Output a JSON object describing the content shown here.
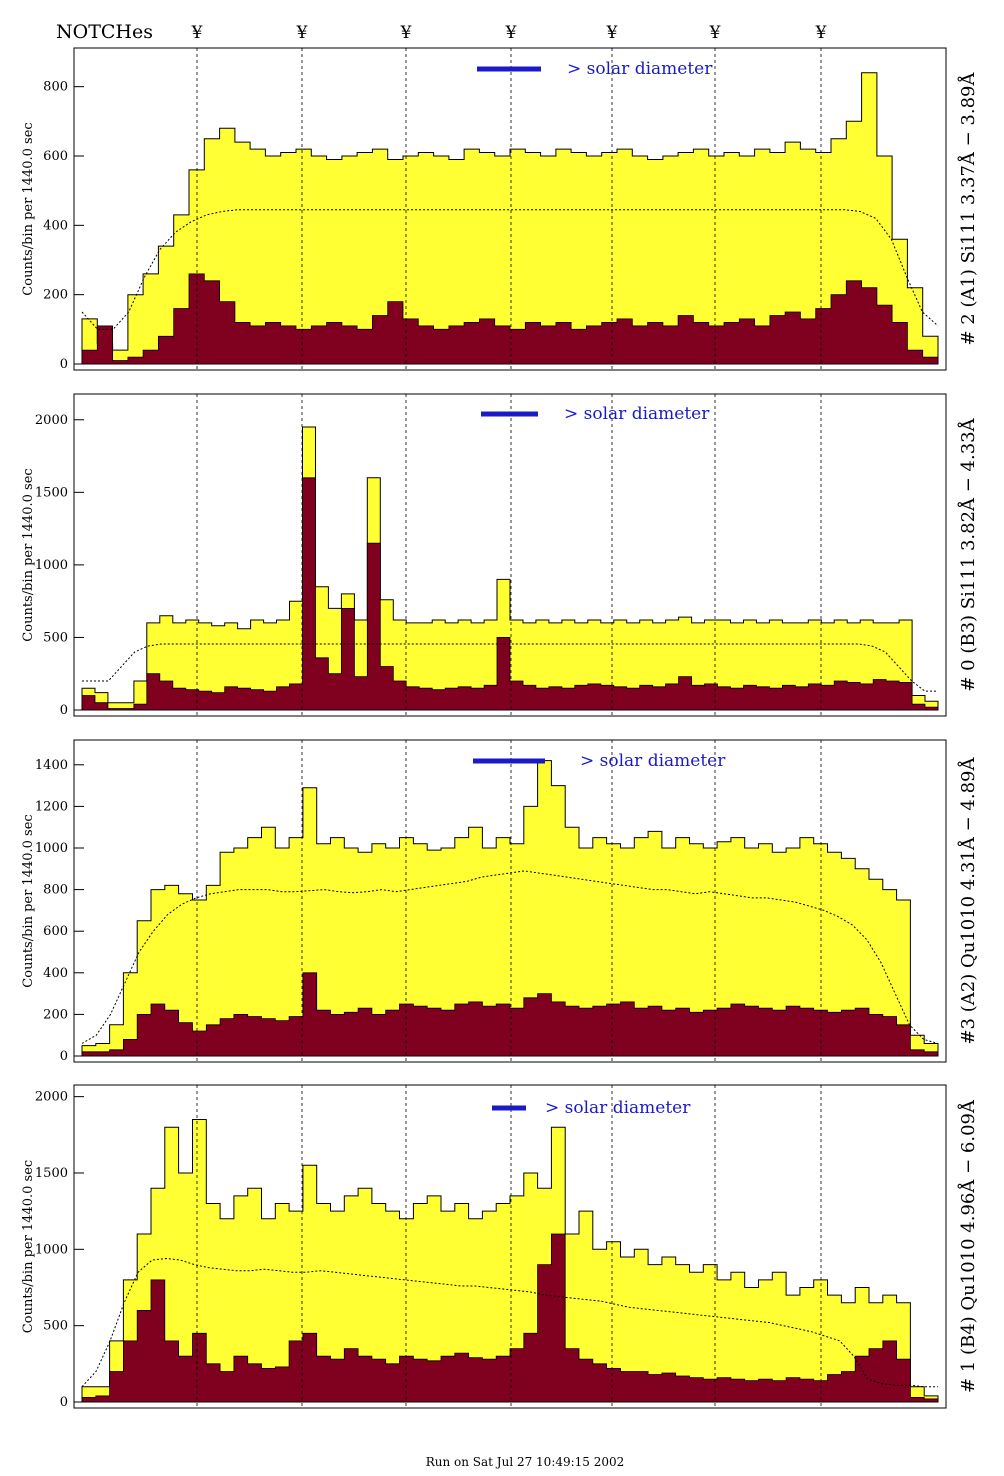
{
  "header": {
    "notches_label": "NOTCHes",
    "notch_symbol": "¥"
  },
  "footer": {
    "run_text": "Run on Sat Jul 27 10:49:15 2002"
  },
  "colors": {
    "upper_fill": "#ffff33",
    "lower_fill": "#800020",
    "legend_blue": "#1a1ac8",
    "axis": "#000000"
  },
  "chart_data": [
    {
      "type": "area",
      "ylabel": "Counts/bin per   1440.0 sec",
      "right_label": "# 2 (A1) Si111  3.37Å − 3.89Å",
      "legend": "> solar diameter",
      "ylim": [
        0,
        900
      ],
      "yticks": [
        0,
        200,
        400,
        600,
        800
      ],
      "series": [
        {
          "values": [
            130,
            60,
            40,
            200,
            260,
            340,
            430,
            560,
            650,
            680,
            640,
            620,
            600,
            610,
            620,
            600,
            590,
            600,
            610,
            620,
            590,
            600,
            610,
            600,
            590,
            620,
            610,
            600,
            620,
            610,
            600,
            620,
            610,
            600,
            610,
            620,
            600,
            590,
            600,
            610,
            620,
            600,
            610,
            600,
            620,
            610,
            640,
            620,
            610,
            650,
            700,
            840,
            600,
            360,
            220,
            80
          ]
        },
        {
          "values": [
            40,
            110,
            10,
            20,
            40,
            80,
            160,
            260,
            240,
            180,
            120,
            110,
            120,
            110,
            100,
            110,
            120,
            110,
            100,
            140,
            180,
            130,
            110,
            100,
            110,
            120,
            130,
            110,
            100,
            120,
            110,
            120,
            100,
            110,
            120,
            130,
            110,
            120,
            110,
            140,
            120,
            110,
            120,
            130,
            110,
            140,
            150,
            130,
            160,
            200,
            240,
            220,
            170,
            120,
            40,
            20
          ]
        },
        {
          "values": [
            150,
            100,
            100,
            150,
            250,
            330,
            380,
            410,
            430,
            440,
            445,
            445,
            445,
            445,
            445,
            445,
            445,
            445,
            445,
            445,
            445,
            445,
            445,
            445,
            445,
            445,
            445,
            445,
            445,
            445,
            445,
            445,
            445,
            445,
            445,
            445,
            445,
            445,
            445,
            445,
            445,
            445,
            445,
            445,
            445,
            445,
            445,
            445,
            445,
            445,
            440,
            420,
            360,
            250,
            150,
            110
          ]
        }
      ]
    },
    {
      "type": "area",
      "ylabel": "Counts/bin per   1440.0 sec",
      "right_label": "# 0 (B3) Si111  3.82Å − 4.33Å",
      "legend": "> solar diameter",
      "ylim": [
        0,
        2150
      ],
      "yticks": [
        0,
        500,
        1000,
        1500,
        2000
      ],
      "series": [
        {
          "values": [
            150,
            120,
            50,
            50,
            200,
            600,
            650,
            600,
            620,
            600,
            580,
            600,
            560,
            620,
            600,
            620,
            750,
            1950,
            850,
            700,
            800,
            620,
            1600,
            760,
            620,
            600,
            600,
            620,
            600,
            620,
            600,
            620,
            900,
            620,
            600,
            620,
            600,
            620,
            600,
            620,
            600,
            620,
            600,
            620,
            600,
            620,
            640,
            600,
            620,
            620,
            600,
            620,
            600,
            620,
            600,
            600,
            620,
            600,
            620,
            600,
            620,
            600,
            600,
            620,
            100,
            60
          ]
        },
        {
          "values": [
            100,
            50,
            10,
            10,
            40,
            250,
            200,
            150,
            140,
            130,
            120,
            160,
            150,
            140,
            130,
            160,
            180,
            1600,
            360,
            250,
            700,
            230,
            1150,
            300,
            200,
            160,
            150,
            140,
            150,
            160,
            150,
            170,
            500,
            200,
            170,
            150,
            160,
            150,
            170,
            180,
            170,
            160,
            150,
            170,
            160,
            180,
            230,
            170,
            180,
            160,
            150,
            170,
            160,
            150,
            170,
            160,
            180,
            170,
            200,
            190,
            180,
            210,
            200,
            190,
            40,
            20
          ]
        },
        {
          "values": [
            200,
            200,
            200,
            300,
            400,
            440,
            455,
            455,
            455,
            455,
            455,
            455,
            455,
            455,
            455,
            455,
            455,
            455,
            455,
            455,
            455,
            455,
            455,
            455,
            455,
            455,
            455,
            455,
            455,
            455,
            455,
            455,
            455,
            455,
            455,
            455,
            455,
            455,
            455,
            455,
            455,
            455,
            455,
            455,
            455,
            455,
            455,
            455,
            455,
            455,
            455,
            455,
            455,
            455,
            455,
            455,
            455,
            455,
            455,
            455,
            440,
            400,
            300,
            200,
            130,
            130
          ]
        }
      ]
    },
    {
      "type": "area",
      "ylabel": "Counts/bin per   1440.0 sec",
      "right_label": "#3 (A2) Qu1010  4.31Å − 4.89Å",
      "legend": "> solar diameter",
      "ylim": [
        0,
        1500
      ],
      "yticks": [
        0,
        200,
        400,
        600,
        800,
        1000,
        1200,
        1400
      ],
      "series": [
        {
          "values": [
            50,
            60,
            150,
            400,
            650,
            800,
            820,
            780,
            750,
            820,
            980,
            1000,
            1050,
            1100,
            1000,
            1050,
            1290,
            1020,
            1050,
            1000,
            980,
            1020,
            1000,
            1050,
            1020,
            990,
            1000,
            1050,
            1100,
            1000,
            1050,
            1020,
            1200,
            1420,
            1300,
            1100,
            1000,
            1050,
            1020,
            1000,
            1050,
            1080,
            1000,
            1050,
            1020,
            1000,
            1030,
            1050,
            1000,
            1020,
            980,
            1000,
            1050,
            1020,
            980,
            950,
            900,
            850,
            800,
            750,
            100,
            60
          ]
        },
        {
          "values": [
            20,
            20,
            30,
            80,
            200,
            250,
            220,
            160,
            120,
            150,
            180,
            200,
            190,
            180,
            170,
            190,
            400,
            220,
            200,
            210,
            230,
            200,
            220,
            250,
            240,
            230,
            220,
            250,
            260,
            240,
            250,
            230,
            280,
            300,
            260,
            240,
            230,
            240,
            250,
            260,
            230,
            240,
            220,
            230,
            210,
            220,
            230,
            250,
            240,
            230,
            220,
            240,
            230,
            220,
            210,
            220,
            230,
            200,
            190,
            150,
            30,
            20
          ]
        },
        {
          "values": [
            60,
            100,
            200,
            350,
            500,
            600,
            680,
            730,
            760,
            780,
            790,
            800,
            800,
            800,
            790,
            790,
            795,
            800,
            790,
            785,
            790,
            800,
            790,
            800,
            810,
            820,
            830,
            840,
            860,
            870,
            880,
            890,
            880,
            870,
            860,
            850,
            840,
            830,
            820,
            810,
            800,
            800,
            790,
            780,
            790,
            780,
            770,
            760,
            760,
            750,
            740,
            720,
            700,
            670,
            630,
            560,
            450,
            300,
            150,
            80,
            60
          ]
        }
      ]
    },
    {
      "type": "area",
      "ylabel": "Counts/bin per   1440.0 sec",
      "right_label": "# 1 (B4) Qu1010 4.96Å − 6.09Å",
      "legend": "> solar diameter",
      "ylim": [
        0,
        2050
      ],
      "yticks": [
        0,
        500,
        1000,
        1500,
        2000
      ],
      "series": [
        {
          "values": [
            100,
            100,
            400,
            800,
            1100,
            1400,
            1800,
            1500,
            1850,
            1300,
            1200,
            1350,
            1400,
            1200,
            1300,
            1250,
            1550,
            1300,
            1250,
            1350,
            1400,
            1300,
            1250,
            1200,
            1300,
            1350,
            1250,
            1300,
            1200,
            1250,
            1300,
            1350,
            1500,
            1400,
            1800,
            1100,
            1250,
            1000,
            1050,
            950,
            1000,
            900,
            950,
            900,
            850,
            900,
            800,
            850,
            750,
            800,
            850,
            700,
            750,
            800,
            700,
            650,
            750,
            650,
            700,
            650,
            100,
            40
          ]
        },
        {
          "values": [
            30,
            40,
            200,
            400,
            600,
            800,
            400,
            300,
            450,
            250,
            200,
            300,
            250,
            220,
            230,
            400,
            450,
            300,
            280,
            350,
            300,
            280,
            250,
            300,
            280,
            270,
            300,
            320,
            290,
            280,
            300,
            350,
            450,
            900,
            1100,
            350,
            280,
            250,
            220,
            200,
            200,
            180,
            190,
            170,
            160,
            150,
            160,
            150,
            140,
            150,
            140,
            160,
            150,
            140,
            180,
            200,
            300,
            350,
            400,
            280,
            30,
            20
          ]
        },
        {
          "values": [
            100,
            200,
            400,
            650,
            850,
            930,
            940,
            930,
            900,
            880,
            870,
            860,
            860,
            870,
            860,
            850,
            850,
            860,
            850,
            840,
            830,
            820,
            810,
            800,
            790,
            780,
            770,
            760,
            760,
            750,
            740,
            730,
            720,
            700,
            690,
            680,
            670,
            660,
            640,
            620,
            610,
            600,
            590,
            580,
            570,
            560,
            550,
            540,
            530,
            520,
            500,
            480,
            460,
            430,
            400,
            300,
            150,
            120,
            110,
            110,
            100,
            100
          ]
        }
      ]
    }
  ]
}
